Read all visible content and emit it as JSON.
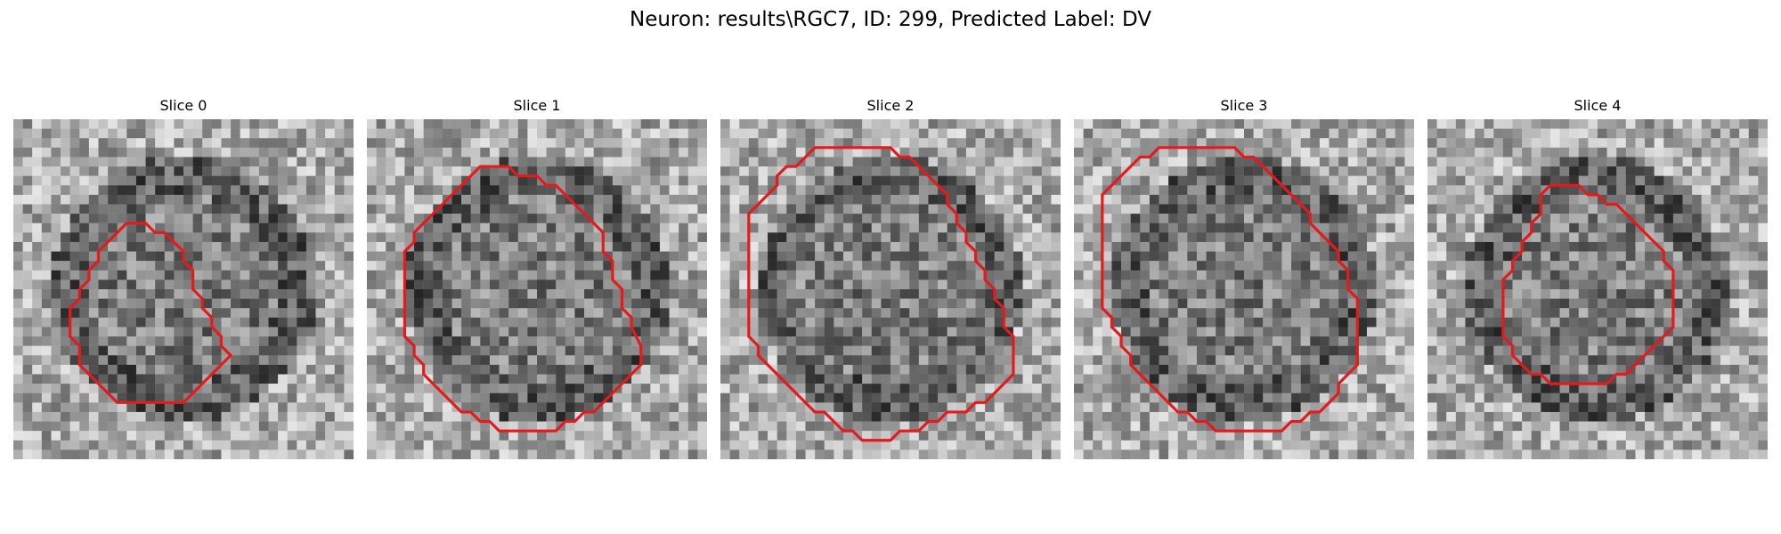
{
  "figure": {
    "title": "Neuron: results\\RGC7, ID: 299, Predicted Label: DV"
  },
  "panels": [
    {
      "title": "Slice 0",
      "overlay_color": "#e41a1c",
      "contour": [
        [
          12,
          11
        ],
        [
          14,
          11
        ],
        [
          15,
          12
        ],
        [
          16,
          12
        ],
        [
          17,
          13
        ],
        [
          18,
          14
        ],
        [
          18,
          15
        ],
        [
          19,
          16
        ],
        [
          19,
          18
        ],
        [
          20,
          19
        ],
        [
          20,
          20
        ],
        [
          21,
          21
        ],
        [
          21,
          22
        ],
        [
          22,
          23
        ],
        [
          22,
          24
        ],
        [
          23,
          25
        ],
        [
          22,
          26
        ],
        [
          21,
          27
        ],
        [
          20,
          28
        ],
        [
          19,
          29
        ],
        [
          18,
          30
        ],
        [
          17,
          30
        ],
        [
          16,
          30
        ],
        [
          15,
          30
        ],
        [
          14,
          30
        ],
        [
          13,
          30
        ],
        [
          12,
          30
        ],
        [
          11,
          30
        ],
        [
          10,
          29
        ],
        [
          9,
          28
        ],
        [
          8,
          27
        ],
        [
          7,
          26
        ],
        [
          7,
          25
        ],
        [
          7,
          24
        ],
        [
          6,
          23
        ],
        [
          6,
          22
        ],
        [
          6,
          21
        ],
        [
          6,
          20
        ],
        [
          7,
          19
        ],
        [
          7,
          18
        ],
        [
          8,
          17
        ],
        [
          8,
          16
        ],
        [
          9,
          15
        ],
        [
          9,
          14
        ],
        [
          10,
          13
        ],
        [
          11,
          12
        ]
      ]
    },
    {
      "title": "Slice 1",
      "overlay_color": "#e41a1c",
      "contour": [
        [
          12,
          5
        ],
        [
          15,
          5
        ],
        [
          16,
          6
        ],
        [
          18,
          6
        ],
        [
          19,
          7
        ],
        [
          20,
          7
        ],
        [
          21,
          8
        ],
        [
          22,
          9
        ],
        [
          23,
          10
        ],
        [
          24,
          11
        ],
        [
          25,
          12
        ],
        [
          25,
          14
        ],
        [
          26,
          15
        ],
        [
          26,
          17
        ],
        [
          27,
          18
        ],
        [
          27,
          20
        ],
        [
          28,
          21
        ],
        [
          28,
          22
        ],
        [
          29,
          24
        ],
        [
          29,
          26
        ],
        [
          28,
          27
        ],
        [
          27,
          28
        ],
        [
          26,
          29
        ],
        [
          25,
          30
        ],
        [
          24,
          31
        ],
        [
          23,
          31
        ],
        [
          22,
          32
        ],
        [
          21,
          32
        ],
        [
          20,
          33
        ],
        [
          14,
          33
        ],
        [
          13,
          32
        ],
        [
          12,
          32
        ],
        [
          11,
          31
        ],
        [
          10,
          31
        ],
        [
          9,
          30
        ],
        [
          8,
          29
        ],
        [
          7,
          28
        ],
        [
          6,
          27
        ],
        [
          6,
          26
        ],
        [
          5,
          25
        ],
        [
          5,
          24
        ],
        [
          4,
          23
        ],
        [
          4,
          22
        ],
        [
          4,
          21
        ],
        [
          4,
          20
        ],
        [
          4,
          19
        ],
        [
          4,
          18
        ],
        [
          4,
          17
        ],
        [
          4,
          16
        ],
        [
          4,
          15
        ],
        [
          4,
          14
        ],
        [
          5,
          13
        ],
        [
          5,
          12
        ],
        [
          6,
          11
        ],
        [
          7,
          10
        ],
        [
          8,
          9
        ],
        [
          9,
          8
        ],
        [
          10,
          7
        ],
        [
          11,
          6
        ]
      ]
    },
    {
      "title": "Slice 2",
      "overlay_color": "#e41a1c",
      "contour": [
        [
          10,
          3
        ],
        [
          18,
          3
        ],
        [
          19,
          4
        ],
        [
          20,
          4
        ],
        [
          21,
          5
        ],
        [
          22,
          6
        ],
        [
          23,
          7
        ],
        [
          24,
          8
        ],
        [
          24,
          9
        ],
        [
          25,
          10
        ],
        [
          25,
          11
        ],
        [
          26,
          12
        ],
        [
          26,
          13
        ],
        [
          27,
          14
        ],
        [
          27,
          15
        ],
        [
          28,
          16
        ],
        [
          28,
          17
        ],
        [
          29,
          18
        ],
        [
          29,
          19
        ],
        [
          30,
          20
        ],
        [
          30,
          22
        ],
        [
          31,
          23
        ],
        [
          31,
          27
        ],
        [
          30,
          28
        ],
        [
          29,
          29
        ],
        [
          28,
          30
        ],
        [
          27,
          30
        ],
        [
          26,
          31
        ],
        [
          25,
          31
        ],
        [
          24,
          31
        ],
        [
          23,
          32
        ],
        [
          22,
          32
        ],
        [
          21,
          33
        ],
        [
          19,
          33
        ],
        [
          18,
          34
        ],
        [
          15,
          34
        ],
        [
          14,
          33
        ],
        [
          13,
          33
        ],
        [
          12,
          32
        ],
        [
          11,
          31
        ],
        [
          10,
          31
        ],
        [
          9,
          30
        ],
        [
          8,
          29
        ],
        [
          7,
          28
        ],
        [
          6,
          27
        ],
        [
          5,
          26
        ],
        [
          4,
          25
        ],
        [
          4,
          24
        ],
        [
          3,
          23
        ],
        [
          3,
          22
        ],
        [
          3,
          21
        ],
        [
          3,
          20
        ],
        [
          3,
          18
        ],
        [
          3,
          16
        ],
        [
          3,
          14
        ],
        [
          3,
          12
        ],
        [
          3,
          10
        ],
        [
          4,
          9
        ],
        [
          5,
          8
        ],
        [
          6,
          7
        ],
        [
          6,
          6
        ],
        [
          7,
          5
        ],
        [
          8,
          5
        ],
        [
          9,
          4
        ]
      ]
    },
    {
      "title": "Slice 3",
      "overlay_color": "#e41a1c",
      "contour": [
        [
          9,
          3
        ],
        [
          17,
          3
        ],
        [
          18,
          4
        ],
        [
          19,
          4
        ],
        [
          20,
          5
        ],
        [
          21,
          6
        ],
        [
          22,
          7
        ],
        [
          23,
          8
        ],
        [
          24,
          9
        ],
        [
          25,
          10
        ],
        [
          25,
          11
        ],
        [
          26,
          12
        ],
        [
          27,
          13
        ],
        [
          28,
          14
        ],
        [
          28,
          15
        ],
        [
          29,
          16
        ],
        [
          29,
          18
        ],
        [
          30,
          19
        ],
        [
          30,
          26
        ],
        [
          29,
          27
        ],
        [
          28,
          28
        ],
        [
          28,
          29
        ],
        [
          27,
          30
        ],
        [
          26,
          31
        ],
        [
          25,
          31
        ],
        [
          24,
          32
        ],
        [
          23,
          32
        ],
        [
          22,
          33
        ],
        [
          15,
          33
        ],
        [
          14,
          32
        ],
        [
          13,
          32
        ],
        [
          12,
          31
        ],
        [
          11,
          31
        ],
        [
          10,
          30
        ],
        [
          9,
          29
        ],
        [
          8,
          28
        ],
        [
          7,
          27
        ],
        [
          6,
          26
        ],
        [
          6,
          25
        ],
        [
          5,
          24
        ],
        [
          5,
          23
        ],
        [
          4,
          22
        ],
        [
          4,
          21
        ],
        [
          3,
          20
        ],
        [
          3,
          19
        ],
        [
          3,
          18
        ],
        [
          3,
          17
        ],
        [
          3,
          16
        ],
        [
          3,
          15
        ],
        [
          3,
          14
        ],
        [
          3,
          13
        ],
        [
          3,
          12
        ],
        [
          3,
          11
        ],
        [
          3,
          10
        ],
        [
          3,
          9
        ],
        [
          3,
          8
        ],
        [
          4,
          7
        ],
        [
          5,
          6
        ],
        [
          6,
          5
        ],
        [
          7,
          4
        ],
        [
          8,
          4
        ]
      ]
    },
    {
      "title": "Slice 4",
      "overlay_color": "#e41a1c",
      "contour": [
        [
          13,
          7
        ],
        [
          16,
          7
        ],
        [
          17,
          8
        ],
        [
          18,
          8
        ],
        [
          19,
          9
        ],
        [
          20,
          9
        ],
        [
          21,
          10
        ],
        [
          22,
          11
        ],
        [
          23,
          12
        ],
        [
          24,
          13
        ],
        [
          25,
          14
        ],
        [
          25,
          15
        ],
        [
          26,
          16
        ],
        [
          26,
          17
        ],
        [
          26,
          18
        ],
        [
          26,
          19
        ],
        [
          26,
          20
        ],
        [
          26,
          21
        ],
        [
          26,
          22
        ],
        [
          25,
          23
        ],
        [
          24,
          24
        ],
        [
          23,
          25
        ],
        [
          22,
          26
        ],
        [
          21,
          27
        ],
        [
          20,
          27
        ],
        [
          19,
          28
        ],
        [
          18,
          28
        ],
        [
          17,
          28
        ],
        [
          16,
          28
        ],
        [
          15,
          28
        ],
        [
          14,
          28
        ],
        [
          13,
          28
        ],
        [
          12,
          27
        ],
        [
          11,
          27
        ],
        [
          10,
          26
        ],
        [
          9,
          25
        ],
        [
          9,
          24
        ],
        [
          8,
          23
        ],
        [
          8,
          22
        ],
        [
          8,
          21
        ],
        [
          8,
          20
        ],
        [
          8,
          19
        ],
        [
          8,
          18
        ],
        [
          8,
          17
        ],
        [
          9,
          16
        ],
        [
          9,
          15
        ],
        [
          10,
          14
        ],
        [
          10,
          13
        ],
        [
          11,
          12
        ],
        [
          11,
          11
        ],
        [
          12,
          10
        ],
        [
          12,
          9
        ],
        [
          12,
          8
        ]
      ]
    }
  ]
}
